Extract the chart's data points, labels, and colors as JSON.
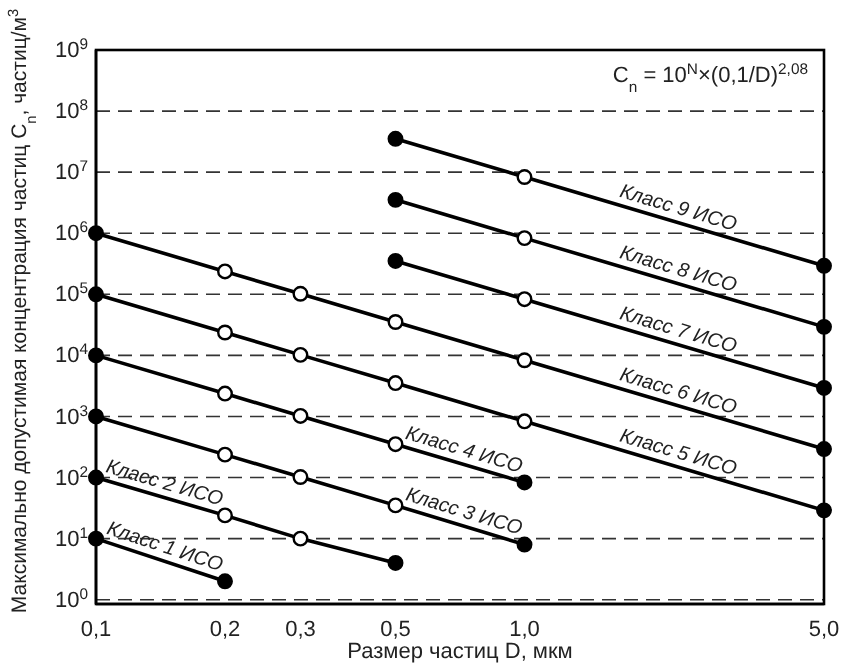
{
  "chart_data": {
    "type": "line",
    "xlabel": "Размер частиц D, мкм",
    "ylabel": "Максимально допустимая концентрация частиц C$_{n}$, частиц/м$^{3}$",
    "annotations": [
      "C$_{n}$ = 10$^{N}$×(0,1/D)$^{2,08}$"
    ],
    "log": "xy",
    "grid": "y",
    "line_style": "solid",
    "marker": "circle",
    "legend": false,
    "xlim": [
      0.1,
      5
    ],
    "xticks": [
      {
        "value": 0.1,
        "label": "0,1"
      },
      {
        "value": 0.2,
        "label": "0,2"
      },
      {
        "value": 0.3,
        "label": "0,3"
      },
      {
        "value": 0.5,
        "label": "0,5"
      },
      {
        "value": 1,
        "label": "1,0"
      },
      {
        "value": 5,
        "label": "5,0"
      }
    ],
    "ylim": [
      0.85,
      1000000000
    ],
    "yticks": [
      {
        "value": 1,
        "label": "10$^{0}$"
      },
      {
        "value": 10,
        "label": "10$^{1}$"
      },
      {
        "value": 100,
        "label": "10$^{2}$"
      },
      {
        "value": 1000,
        "label": "10$^{3}$"
      },
      {
        "value": 10000,
        "label": "10$^{4}$"
      },
      {
        "value": 100000,
        "label": "10$^{5}$"
      },
      {
        "value": 1000000,
        "label": "10$^{6}$"
      },
      {
        "value": 10000000,
        "label": "10$^{7}$"
      },
      {
        "value": 100000000,
        "label": "10$^{8}$"
      },
      {
        "value": 1000000000,
        "label": "10$^{9}$"
      }
    ],
    "series": [
      {
        "name": "Класс 1 ИСО",
        "color": "#000000",
        "x": [
          0.1,
          0.2
        ],
        "values": [
          10,
          2
        ]
      },
      {
        "name": "Класс 2 ИСО",
        "color": "#000000",
        "x": [
          0.1,
          0.2,
          0.3,
          0.5
        ],
        "values": [
          100,
          24,
          10,
          4
        ]
      },
      {
        "name": "Класс 3 ИСО",
        "color": "#000000",
        "x": [
          0.1,
          0.2,
          0.3,
          0.5,
          1
        ],
        "values": [
          1000,
          237,
          102,
          35,
          8
        ]
      },
      {
        "name": "Класс 4 ИСО",
        "color": "#000000",
        "x": [
          0.1,
          0.2,
          0.3,
          0.5,
          1
        ],
        "values": [
          10000,
          2370,
          1020,
          352,
          83
        ]
      },
      {
        "name": "Класс 5 ИСО",
        "color": "#000000",
        "x": [
          0.1,
          0.2,
          0.3,
          0.5,
          1,
          5
        ],
        "values": [
          100000,
          23700,
          10200,
          3520,
          832,
          29
        ]
      },
      {
        "name": "Класс 6 ИСО",
        "color": "#000000",
        "x": [
          0.1,
          0.2,
          0.3,
          0.5,
          1,
          5
        ],
        "values": [
          1000000,
          237000,
          102000,
          35200,
          8320,
          293
        ]
      },
      {
        "name": "Класс 7 ИСО",
        "color": "#000000",
        "x": [
          0.5,
          1,
          5
        ],
        "values": [
          352000,
          83200,
          2930
        ]
      },
      {
        "name": "Класс 8 ИСО",
        "color": "#000000",
        "x": [
          0.5,
          1,
          5
        ],
        "values": [
          3520000,
          832000,
          29300
        ]
      },
      {
        "name": "Класс 9 ИСО",
        "color": "#000000",
        "x": [
          0.5,
          1,
          5
        ],
        "values": [
          35200000,
          8320000,
          293000
        ]
      }
    ]
  }
}
